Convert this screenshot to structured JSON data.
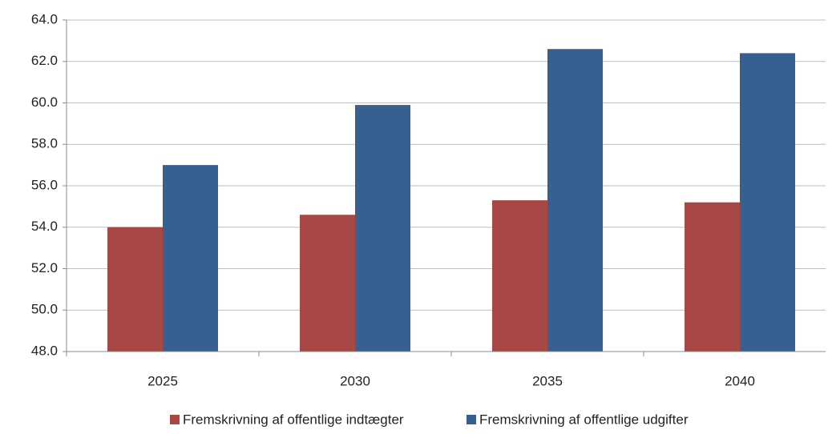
{
  "chart_data": {
    "type": "bar",
    "categories": [
      "2025",
      "2030",
      "2035",
      "2040"
    ],
    "series": [
      {
        "name": "Fremskrivning af offentlige indtægter",
        "color": "#a94744",
        "values": [
          54.0,
          54.6,
          55.3,
          55.2
        ]
      },
      {
        "name": "Fremskrivning af offentlige udgifter",
        "color": "#35608f",
        "values": [
          57.0,
          59.9,
          62.6,
          62.4
        ]
      }
    ],
    "ylim": [
      48,
      64
    ],
    "yticks": [
      {
        "value": 48,
        "label": "48.0"
      },
      {
        "value": 50,
        "label": "50.0"
      },
      {
        "value": 52,
        "label": "52.0"
      },
      {
        "value": 54,
        "label": "54.0"
      },
      {
        "value": 56,
        "label": "56.0"
      },
      {
        "value": 58,
        "label": "58.0"
      },
      {
        "value": 60,
        "label": "60.0"
      },
      {
        "value": 62,
        "label": "62.0"
      },
      {
        "value": 64,
        "label": "64.0"
      }
    ],
    "grid": true,
    "legend": "bottom"
  }
}
